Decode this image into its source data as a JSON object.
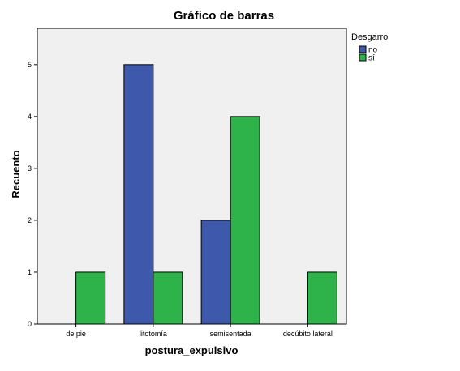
{
  "chart_data": {
    "type": "bar",
    "title": "Gráfico de barras",
    "xlabel": "postura_expulsivo",
    "ylabel": "Recuento",
    "categories": [
      "de pie",
      "litotomía",
      "semisentada",
      "decúbito lateral"
    ],
    "series": [
      {
        "name": "no",
        "color": "#3e58ac",
        "values": [
          0,
          5,
          2,
          0
        ]
      },
      {
        "name": "sí",
        "color": "#2eb34a",
        "values": [
          1,
          1,
          4,
          1
        ]
      }
    ],
    "ylim": [
      0,
      5.7
    ],
    "yticks": [
      "0",
      "1",
      "2",
      "3",
      "4",
      "5"
    ],
    "legend": {
      "title": "Desgarro",
      "placement": "right-top"
    },
    "grid": false,
    "plot_background": "#f0f0f0"
  }
}
